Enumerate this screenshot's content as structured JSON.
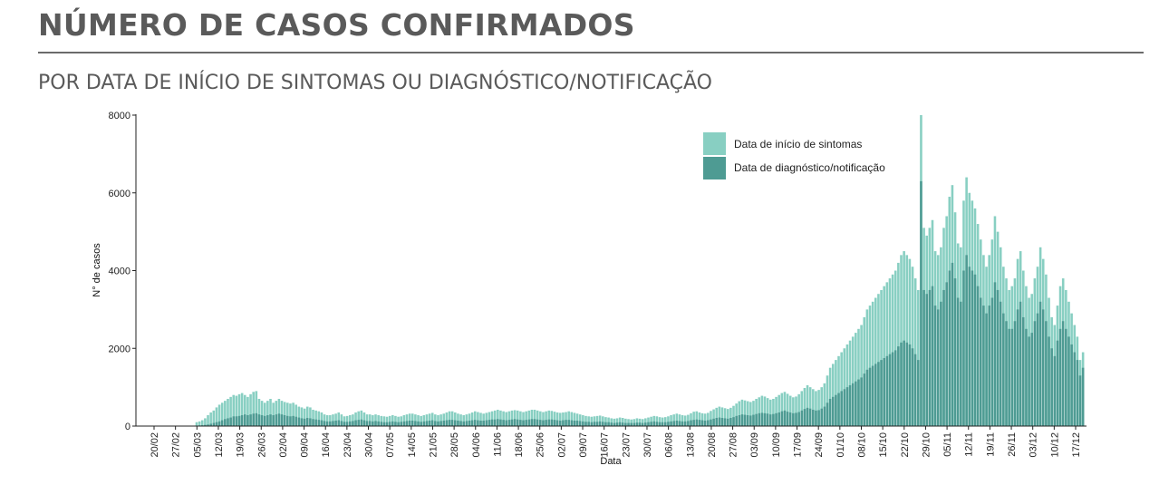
{
  "header": {
    "title": "NÚMERO DE CASOS CONFIRMADOS",
    "subtitle": "POR DATA DE INÍCIO DE SINTOMAS OU DIAGNÓSTICO/NOTIFICAÇÃO"
  },
  "colors": {
    "sintomas": "#88cfc2",
    "diagnostico": "#4e9b93",
    "text": "#5a5a5a"
  },
  "chart_data": {
    "type": "bar",
    "title": "",
    "xlabel": "Data",
    "ylabel": "N° de casos",
    "ylim": [
      0,
      8000
    ],
    "yticks": [
      0,
      2000,
      4000,
      6000,
      8000
    ],
    "grid": false,
    "legend_position": "top-right",
    "x_tick_labels": [
      "20/02",
      "27/02",
      "05/03",
      "12/03",
      "19/03",
      "26/03",
      "02/04",
      "09/04",
      "16/04",
      "23/04",
      "30/04",
      "07/05",
      "14/05",
      "21/05",
      "28/05",
      "04/06",
      "11/06",
      "18/06",
      "25/06",
      "02/07",
      "09/07",
      "16/07",
      "23/07",
      "30/07",
      "06/08",
      "13/08",
      "20/08",
      "27/08",
      "03/09",
      "10/09",
      "17/09",
      "24/09",
      "01/10",
      "08/10",
      "15/10",
      "22/10",
      "29/10",
      "05/11",
      "12/11",
      "19/11",
      "26/11",
      "03/12",
      "10/12",
      "17/12"
    ],
    "series": [
      {
        "name": "Data de início de sintomas",
        "values": [
          0,
          0,
          0,
          0,
          0,
          0,
          0,
          0,
          0,
          0,
          0,
          0,
          0,
          0,
          0,
          0,
          0,
          0,
          0,
          0,
          100,
          120,
          150,
          200,
          280,
          350,
          400,
          480,
          550,
          600,
          650,
          700,
          750,
          800,
          780,
          820,
          850,
          800,
          750,
          820,
          880,
          900,
          700,
          650,
          600,
          650,
          700,
          600,
          650,
          700,
          650,
          620,
          600,
          580,
          600,
          550,
          500,
          480,
          450,
          500,
          480,
          420,
          400,
          380,
          350,
          300,
          280,
          280,
          300,
          320,
          350,
          300,
          250,
          260,
          280,
          300,
          350,
          380,
          400,
          350,
          300,
          300,
          280,
          300,
          280,
          260,
          250,
          240,
          260,
          280,
          260,
          240,
          250,
          280,
          300,
          320,
          320,
          300,
          280,
          260,
          280,
          300,
          320,
          340,
          300,
          280,
          300,
          320,
          350,
          380,
          380,
          350,
          320,
          300,
          280,
          300,
          320,
          350,
          380,
          360,
          340,
          320,
          340,
          360,
          380,
          400,
          420,
          400,
          380,
          360,
          380,
          400,
          410,
          400,
          380,
          360,
          380,
          400,
          420,
          420,
          400,
          380,
          360,
          380,
          400,
          390,
          370,
          350,
          340,
          350,
          360,
          380,
          360,
          340,
          320,
          300,
          280,
          260,
          250,
          240,
          250,
          260,
          270,
          250,
          230,
          220,
          200,
          190,
          200,
          220,
          210,
          190,
          180,
          170,
          180,
          200,
          190,
          180,
          200,
          220,
          240,
          260,
          250,
          230,
          220,
          230,
          250,
          280,
          300,
          320,
          300,
          280,
          270,
          290,
          330,
          370,
          380,
          350,
          330,
          320,
          340,
          390,
          430,
          470,
          500,
          480,
          460,
          440,
          470,
          520,
          580,
          640,
          680,
          660,
          640,
          620,
          650,
          700,
          740,
          780,
          760,
          720,
          680,
          700,
          750,
          800,
          850,
          880,
          830,
          780,
          740,
          760,
          820,
          900,
          980,
          1050,
          1000,
          950,
          900,
          930,
          1000,
          1100,
          1300,
          1500,
          1600,
          1700,
          1800,
          1900,
          2000,
          2100,
          2200,
          2300,
          2400,
          2500,
          2600,
          2800,
          3000,
          3100,
          3200,
          3300,
          3400,
          3500,
          3600,
          3700,
          3800,
          3900,
          4000,
          4200,
          4400,
          4500,
          4400,
          4300,
          4100,
          3800,
          3500,
          8000,
          5100,
          4900,
          5100,
          5300,
          4500,
          4400,
          4600,
          5100,
          5400,
          5900,
          6200,
          5500,
          4700,
          4600,
          5800,
          6400,
          6000,
          5800,
          5600,
          5200,
          4800,
          4400,
          4100,
          4400,
          4800,
          5400,
          5000,
          4600,
          4100,
          3800,
          3500,
          3600,
          3800,
          4300,
          4500,
          4000,
          3600,
          3300,
          3400,
          3800,
          4100,
          4600,
          4300,
          3900,
          3300,
          2800,
          2600,
          3100,
          3600,
          3800,
          3500,
          3200,
          2900,
          2600,
          2300,
          1700,
          1900
        ]
      },
      {
        "name": "Data de diagnóstico/notificação",
        "values": [
          0,
          0,
          0,
          0,
          0,
          0,
          0,
          0,
          0,
          0,
          0,
          0,
          0,
          0,
          0,
          0,
          0,
          0,
          0,
          0,
          10,
          15,
          20,
          30,
          40,
          60,
          80,
          100,
          120,
          150,
          180,
          200,
          220,
          250,
          250,
          260,
          280,
          300,
          280,
          300,
          320,
          330,
          300,
          280,
          260,
          280,
          300,
          280,
          300,
          320,
          300,
          280,
          260,
          250,
          260,
          240,
          220,
          200,
          190,
          210,
          200,
          180,
          170,
          160,
          150,
          130,
          120,
          120,
          130,
          140,
          150,
          130,
          110,
          110,
          120,
          130,
          150,
          160,
          170,
          150,
          130,
          130,
          120,
          130,
          120,
          110,
          100,
          100,
          110,
          120,
          110,
          100,
          110,
          120,
          130,
          140,
          140,
          130,
          120,
          110,
          120,
          130,
          140,
          150,
          130,
          120,
          130,
          140,
          150,
          160,
          160,
          150,
          140,
          130,
          120,
          130,
          140,
          150,
          160,
          150,
          140,
          140,
          150,
          160,
          170,
          170,
          180,
          170,
          160,
          150,
          160,
          170,
          180,
          170,
          160,
          150,
          160,
          170,
          180,
          180,
          170,
          160,
          150,
          160,
          170,
          170,
          160,
          150,
          140,
          150,
          160,
          160,
          150,
          140,
          140,
          130,
          120,
          110,
          110,
          100,
          110,
          110,
          120,
          110,
          100,
          100,
          90,
          80,
          90,
          100,
          90,
          80,
          80,
          80,
          80,
          90,
          90,
          80,
          90,
          100,
          110,
          120,
          110,
          100,
          100,
          100,
          110,
          120,
          130,
          140,
          130,
          120,
          120,
          130,
          150,
          160,
          170,
          160,
          150,
          140,
          150,
          170,
          190,
          210,
          220,
          210,
          200,
          190,
          210,
          230,
          260,
          280,
          300,
          290,
          280,
          270,
          290,
          310,
          330,
          340,
          330,
          320,
          300,
          310,
          330,
          350,
          380,
          400,
          370,
          350,
          330,
          340,
          360,
          400,
          440,
          470,
          450,
          420,
          400,
          410,
          450,
          500,
          600,
          700,
          750,
          800,
          850,
          900,
          950,
          1000,
          1050,
          1100,
          1150,
          1200,
          1250,
          1350,
          1450,
          1500,
          1550,
          1600,
          1650,
          1700,
          1750,
          1800,
          1850,
          1900,
          1950,
          2050,
          2150,
          2200,
          2150,
          2100,
          2000,
          1850,
          1700,
          6300,
          3500,
          3400,
          3500,
          3600,
          3100,
          3000,
          3200,
          3500,
          3700,
          4000,
          4200,
          3800,
          3300,
          3200,
          4000,
          4400,
          4100,
          4000,
          3900,
          3600,
          3300,
          3100,
          2900,
          3100,
          3300,
          3700,
          3500,
          3200,
          2900,
          2700,
          2500,
          2500,
          2700,
          3000,
          3200,
          2800,
          2500,
          2300,
          2400,
          2700,
          2900,
          3200,
          3000,
          2700,
          2300,
          2000,
          1800,
          2200,
          2500,
          2700,
          2500,
          2300,
          2100,
          1900,
          1700,
          1300,
          1500
        ]
      }
    ]
  }
}
